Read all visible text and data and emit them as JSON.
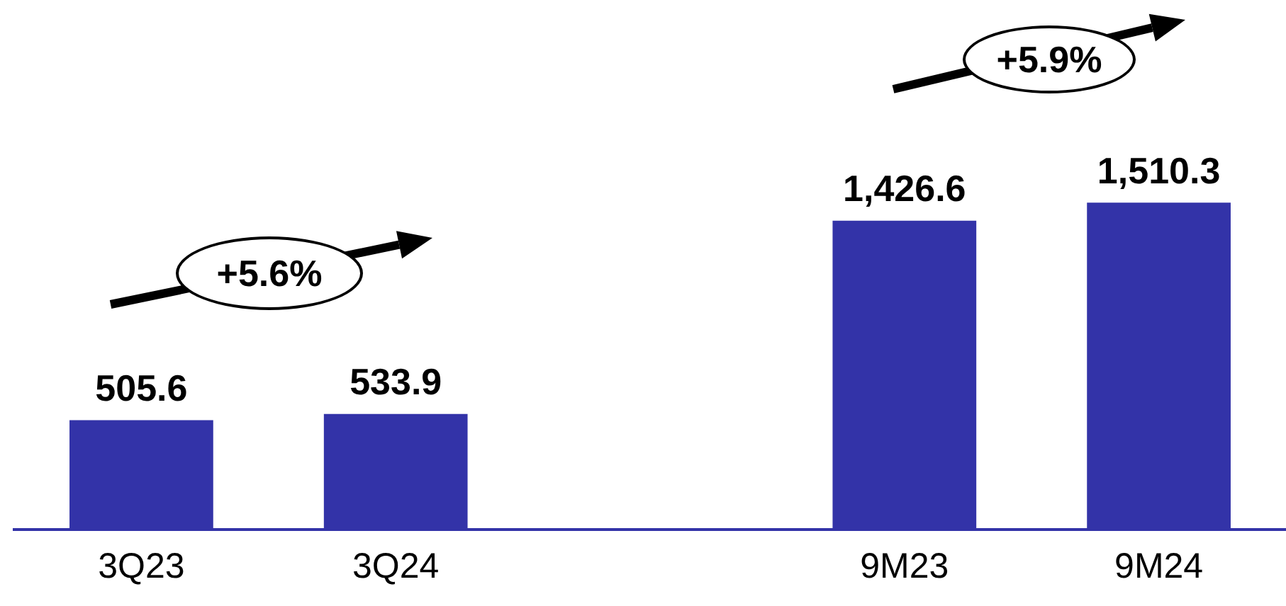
{
  "chart_data": {
    "type": "bar",
    "categories": [
      "3Q23",
      "3Q24",
      null,
      "9M23",
      "9M24"
    ],
    "values": [
      505.6,
      533.9,
      null,
      1426.6,
      1510.3
    ],
    "color": "#3333a8",
    "data_labels": true,
    "value_labels": [
      "505.6",
      "533.9",
      null,
      "1,426.6",
      "1,510.3"
    ],
    "annotations": [
      "+5.6%",
      "+5.9%"
    ],
    "grid": false,
    "legend": false
  }
}
